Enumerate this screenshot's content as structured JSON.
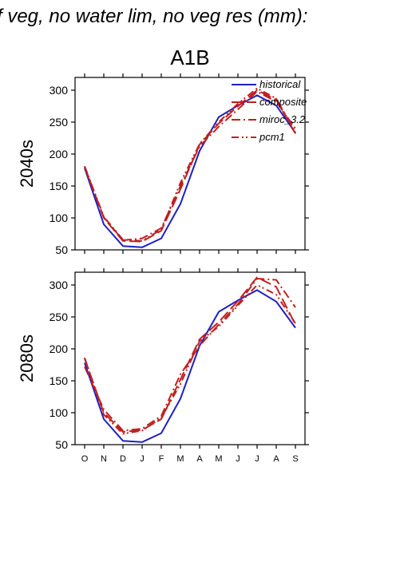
{
  "figure": {
    "title": "f veg, no water lim, no veg res (mm):",
    "scenario": "A1B"
  },
  "chart_data": [
    {
      "type": "line",
      "row_label": "2040s",
      "categories": [
        "O",
        "N",
        "D",
        "J",
        "F",
        "M",
        "A",
        "M",
        "J",
        "J",
        "A",
        "S"
      ],
      "ylim": [
        50,
        320
      ],
      "yticks": [
        50,
        100,
        150,
        200,
        250,
        300
      ],
      "grid": false,
      "legend_position": "top-right",
      "series": [
        {
          "name": "historical",
          "color": "#2020c0",
          "dash": "solid",
          "values": [
            178,
            90,
            56,
            54,
            68,
            122,
            205,
            258,
            276,
            292,
            276,
            233
          ]
        },
        {
          "name": "composite",
          "color": "#c02020",
          "dash": "longdash",
          "values": [
            180,
            100,
            64,
            63,
            80,
            145,
            215,
            248,
            275,
            300,
            285,
            232
          ]
        },
        {
          "name": "miroc_3.2",
          "color": "#c02020",
          "dash": "dashdot",
          "values": [
            180,
            101,
            65,
            68,
            84,
            150,
            212,
            243,
            270,
            298,
            282,
            240
          ]
        },
        {
          "name": "pcm1",
          "color": "#c02020",
          "dash": "dashdotdot",
          "values": [
            181,
            102,
            66,
            64,
            82,
            155,
            216,
            250,
            279,
            303,
            287,
            234
          ]
        }
      ]
    },
    {
      "type": "line",
      "row_label": "2080s",
      "categories": [
        "O",
        "N",
        "D",
        "J",
        "F",
        "M",
        "A",
        "M",
        "J",
        "J",
        "A",
        "S"
      ],
      "ylim": [
        50,
        320
      ],
      "yticks": [
        50,
        100,
        150,
        200,
        250,
        300
      ],
      "grid": false,
      "series": [
        {
          "name": "historical",
          "color": "#2020c0",
          "dash": "solid",
          "values": [
            178,
            90,
            56,
            54,
            68,
            122,
            205,
            258,
            276,
            292,
            274,
            233
          ]
        },
        {
          "name": "composite",
          "color": "#c02020",
          "dash": "longdash",
          "values": [
            185,
            100,
            70,
            73,
            90,
            152,
            215,
            242,
            275,
            312,
            297,
            238
          ]
        },
        {
          "name": "miroc_3.2",
          "color": "#c02020",
          "dash": "dashdot",
          "values": [
            172,
            105,
            72,
            75,
            95,
            160,
            205,
            238,
            270,
            310,
            308,
            265
          ]
        },
        {
          "name": "pcm1",
          "color": "#c02020",
          "dash": "dashdotdot",
          "values": [
            186,
            97,
            67,
            72,
            92,
            145,
            212,
            235,
            268,
            300,
            285,
            240
          ]
        }
      ]
    }
  ]
}
